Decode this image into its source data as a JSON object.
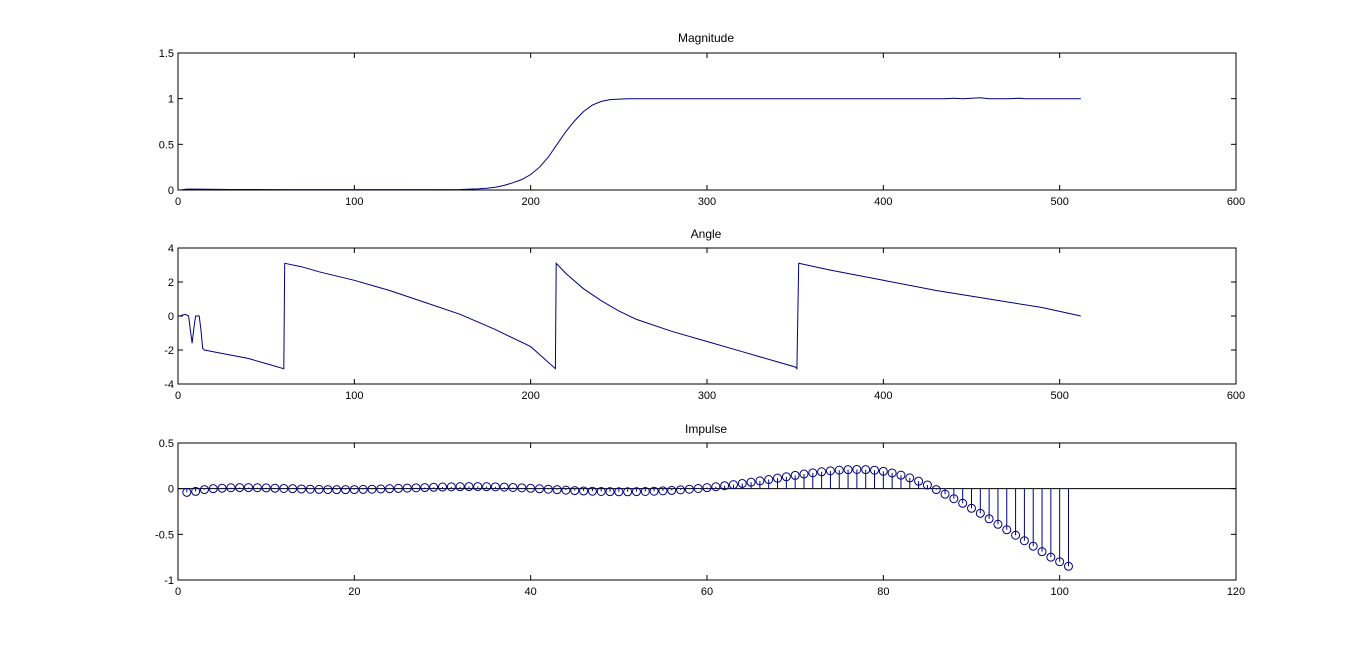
{
  "window": {
    "background": "#ffffff",
    "series_color": "#00007f",
    "axis_color": "#000000"
  },
  "chart_data": [
    {
      "type": "line",
      "title": "Magnitude",
      "xlabel": "",
      "ylabel": "",
      "xlim": [
        0,
        600
      ],
      "ylim": [
        0,
        1.5
      ],
      "xticks": [
        0,
        100,
        200,
        300,
        400,
        500,
        600
      ],
      "yticks": [
        0,
        0.5,
        1,
        1.5
      ],
      "xtick_labels": [
        "0",
        "100",
        "200",
        "300",
        "400",
        "500",
        "600"
      ],
      "ytick_labels": [
        "0",
        "0.5",
        "1",
        "1.5"
      ],
      "grid": false,
      "series": [
        {
          "x": [
            1,
            5,
            10,
            30,
            60,
            100,
            140,
            160,
            170,
            175,
            180,
            185,
            190,
            195,
            200,
            205,
            210,
            215,
            220,
            225,
            230,
            235,
            240,
            245,
            250,
            255,
            260,
            300,
            350,
            400,
            435,
            440,
            445,
            450,
            455,
            460,
            470,
            478,
            480,
            490,
            500,
            512
          ],
          "y": [
            0,
            0.01,
            0.01,
            0.005,
            0.004,
            0.004,
            0.004,
            0.005,
            0.012,
            0.02,
            0.03,
            0.05,
            0.08,
            0.115,
            0.17,
            0.25,
            0.36,
            0.5,
            0.64,
            0.76,
            0.86,
            0.93,
            0.97,
            0.99,
            0.995,
            1.0,
            1.0,
            1.0,
            1.0,
            1.0,
            1.0,
            1.005,
            1.0,
            1.005,
            1.01,
            1.0,
            1.0,
            1.005,
            1.0,
            1.0,
            1.0,
            1.0
          ]
        }
      ]
    },
    {
      "type": "line",
      "title": "Angle",
      "xlabel": "",
      "ylabel": "",
      "xlim": [
        0,
        600
      ],
      "ylim": [
        -4,
        4
      ],
      "xticks": [
        0,
        100,
        200,
        300,
        400,
        500,
        600
      ],
      "yticks": [
        -4,
        -2,
        0,
        2,
        4
      ],
      "xtick_labels": [
        "0",
        "100",
        "200",
        "300",
        "400",
        "500",
        "600"
      ],
      "ytick_labels": [
        "-4",
        "-2",
        "0",
        "2",
        "4"
      ],
      "grid": false,
      "series": [
        {
          "x": [
            1,
            4,
            6,
            7,
            8,
            9,
            10,
            11,
            12,
            13,
            14,
            15,
            20,
            30,
            40,
            50,
            60,
            60.5,
            70,
            80,
            100,
            120,
            140,
            160,
            180,
            200,
            214,
            214.5,
            220,
            230,
            240,
            250,
            260,
            280,
            300,
            320,
            340,
            350,
            351,
            352,
            370,
            400,
            430,
            460,
            490,
            512
          ],
          "y": [
            0,
            0.1,
            0,
            -0.8,
            -1.6,
            -0.7,
            0,
            0,
            0,
            -0.8,
            -1.9,
            -2.0,
            -2.1,
            -2.3,
            -2.5,
            -2.8,
            -3.1,
            3.1,
            2.9,
            2.6,
            2.1,
            1.5,
            0.8,
            0.1,
            -0.8,
            -1.8,
            -3.1,
            3.1,
            2.5,
            1.6,
            0.9,
            0.3,
            -0.2,
            -0.9,
            -1.5,
            -2.1,
            -2.7,
            -3.0,
            -3.1,
            3.1,
            2.7,
            2.1,
            1.5,
            1.0,
            0.5,
            0
          ]
        }
      ]
    },
    {
      "type": "stem",
      "title": "Impulse",
      "xlabel": "",
      "ylabel": "",
      "xlim": [
        0,
        120
      ],
      "ylim": [
        -1,
        0.5
      ],
      "xticks": [
        0,
        20,
        40,
        60,
        80,
        100,
        120
      ],
      "yticks": [
        -1,
        -0.5,
        0,
        0.5
      ],
      "xtick_labels": [
        "0",
        "20",
        "40",
        "60",
        "80",
        "100",
        "120"
      ],
      "ytick_labels": [
        "-1",
        "-0.5",
        "0",
        "0.5"
      ],
      "grid": false,
      "series": [
        {
          "x": [
            1,
            2,
            3,
            4,
            5,
            6,
            7,
            8,
            9,
            10,
            11,
            12,
            13,
            14,
            15,
            16,
            17,
            18,
            19,
            20,
            21,
            22,
            23,
            24,
            25,
            26,
            27,
            28,
            29,
            30,
            31,
            32,
            33,
            34,
            35,
            36,
            37,
            38,
            39,
            40,
            41,
            42,
            43,
            44,
            45,
            46,
            47,
            48,
            49,
            50,
            51,
            52,
            53,
            54,
            55,
            56,
            57,
            58,
            59,
            60,
            61,
            62,
            63,
            64,
            65,
            66,
            67,
            68,
            69,
            70,
            71,
            72,
            73,
            74,
            75,
            76,
            77,
            78,
            79,
            80,
            81,
            82,
            83,
            84,
            85,
            86,
            87,
            88,
            89,
            90,
            91,
            92,
            93,
            94,
            95,
            96,
            97,
            98,
            99,
            100,
            101
          ],
          "y": [
            -0.04,
            -0.03,
            -0.01,
            0.0,
            0.005,
            0.01,
            0.012,
            0.012,
            0.01,
            0.008,
            0.005,
            0.002,
            0.0,
            -0.003,
            -0.006,
            -0.008,
            -0.01,
            -0.011,
            -0.011,
            -0.01,
            -0.008,
            -0.006,
            -0.003,
            0.0,
            0.003,
            0.006,
            0.009,
            0.012,
            0.015,
            0.018,
            0.02,
            0.022,
            0.023,
            0.023,
            0.022,
            0.02,
            0.017,
            0.013,
            0.009,
            0.004,
            -0.001,
            -0.006,
            -0.011,
            -0.016,
            -0.021,
            -0.025,
            -0.028,
            -0.031,
            -0.033,
            -0.034,
            -0.034,
            -0.033,
            -0.031,
            -0.028,
            -0.024,
            -0.019,
            -0.013,
            -0.006,
            0.002,
            0.011,
            0.021,
            0.032,
            0.044,
            0.057,
            0.071,
            0.085,
            0.1,
            0.115,
            0.13,
            0.145,
            0.16,
            0.173,
            0.185,
            0.195,
            0.203,
            0.208,
            0.21,
            0.208,
            0.202,
            0.19,
            0.172,
            0.148,
            0.118,
            0.082,
            0.04,
            -0.01,
            -0.06,
            -0.11,
            -0.16,
            -0.215,
            -0.27,
            -0.33,
            -0.39,
            -0.45,
            -0.51,
            -0.57,
            -0.63,
            -0.69,
            -0.75,
            -0.8,
            -0.85
          ]
        }
      ]
    }
  ]
}
